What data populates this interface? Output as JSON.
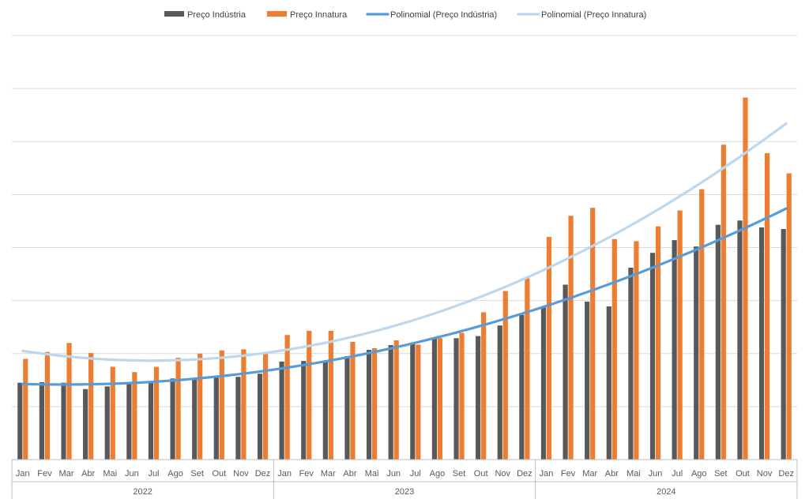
{
  "chart_data": {
    "type": "bar",
    "title": "",
    "xlabel": "",
    "ylabel": "",
    "ylim": [
      0,
      8
    ],
    "grid": true,
    "legend_position": "top",
    "y_tick_labels_visible": false,
    "groups": [
      {
        "label": "2022",
        "months": [
          "Jan",
          "Fev",
          "Mar",
          "Abr",
          "Mai",
          "Jun",
          "Jul",
          "Ago",
          "Set",
          "Out",
          "Nov",
          "Dez"
        ]
      },
      {
        "label": "2023",
        "months": [
          "Jan",
          "Fev",
          "Mar",
          "Abr",
          "Mai",
          "Jun",
          "Jul",
          "Ago",
          "Set",
          "Out",
          "Nov",
          "Dez"
        ]
      },
      {
        "label": "2024",
        "months": [
          "Jan",
          "Fev",
          "Mar",
          "Abr",
          "Mai",
          "Jun",
          "Jul",
          "Ago",
          "Set",
          "Out",
          "Nov",
          "Dez"
        ]
      }
    ],
    "series": [
      {
        "name": "Preço Indústria",
        "color": "#595959",
        "values": [
          1.45,
          1.46,
          1.45,
          1.33,
          1.38,
          1.45,
          1.46,
          1.53,
          1.53,
          1.58,
          1.56,
          1.62,
          1.85,
          1.86,
          1.87,
          1.95,
          2.07,
          2.16,
          2.2,
          2.29,
          2.29,
          2.33,
          2.53,
          2.73,
          2.89,
          3.3,
          2.98,
          2.89,
          3.62,
          3.9,
          4.14,
          4.02,
          4.43,
          4.51,
          4.38,
          4.35
        ]
      },
      {
        "name": "Preço Innatura",
        "color": "#ED7D31",
        "values": [
          1.9,
          2.03,
          2.2,
          2.01,
          1.75,
          1.65,
          1.75,
          1.92,
          2.0,
          2.06,
          2.08,
          2.02,
          2.35,
          2.43,
          2.43,
          2.22,
          2.1,
          2.25,
          2.17,
          2.29,
          2.39,
          2.78,
          3.18,
          3.42,
          4.2,
          4.6,
          4.75,
          4.16,
          4.12,
          4.4,
          4.7,
          5.1,
          5.94,
          6.83,
          5.78,
          5.4
        ]
      }
    ],
    "trendlines": [
      {
        "name": "Polinomial (Preço Indústria)",
        "color": "#5B9BD5",
        "type": "polynomial",
        "of": "Preço Indústria",
        "start": 1.44,
        "end": 4.77
      },
      {
        "name": "Polinomial (Preço Innatura)",
        "color": "#BDD7EE",
        "type": "polynomial",
        "of": "Preço Innatura",
        "start": 2.06,
        "end": 6.35
      }
    ]
  }
}
